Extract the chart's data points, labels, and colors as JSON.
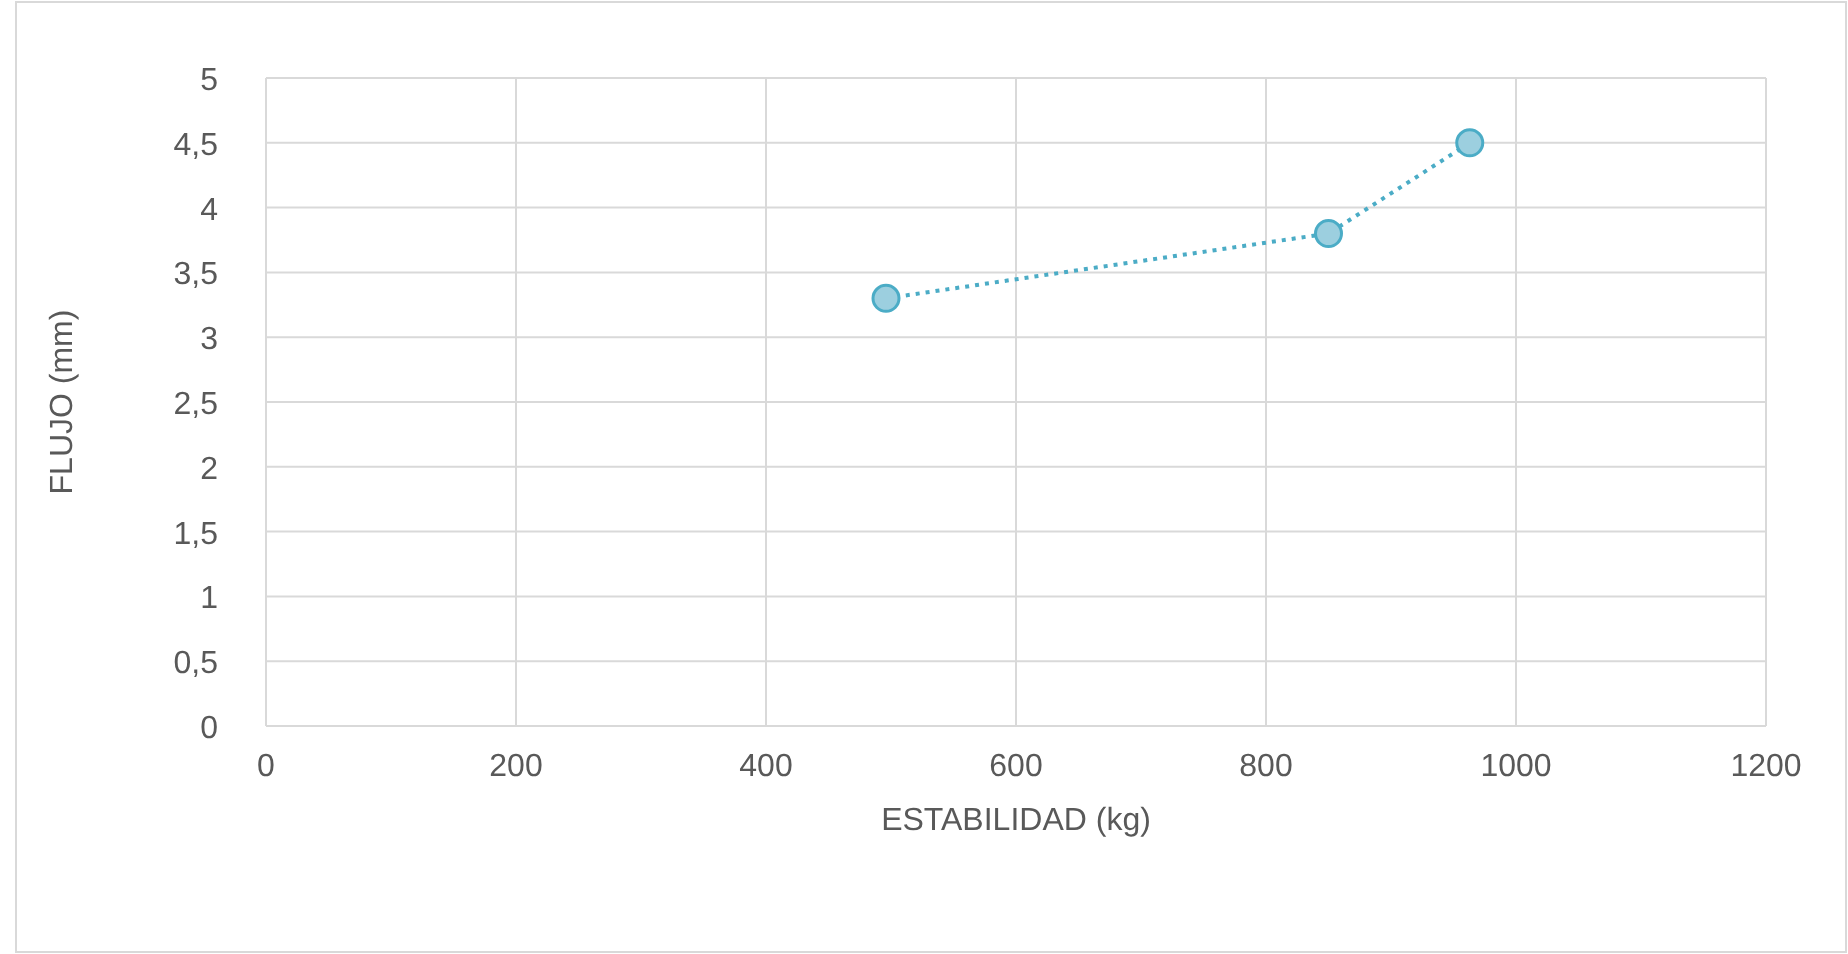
{
  "chart_data": {
    "type": "line",
    "xlabel": "ESTABILIDAD (kg)",
    "ylabel": "FLUJO (mm)",
    "series": [
      {
        "color": "#4bacc6",
        "x": [
          496,
          850,
          963
        ],
        "values": [
          3.3,
          3.8,
          4.5
        ]
      }
    ],
    "xlim": [
      0,
      1200
    ],
    "xticks": [
      0,
      200,
      400,
      600,
      800,
      1000,
      1200
    ],
    "ylim": [
      0,
      5
    ],
    "yticks": [
      0,
      {
        "value": 0.5,
        "label": "0,5"
      },
      1,
      {
        "value": 1.5,
        "label": "1,5"
      },
      2,
      {
        "value": 2.5,
        "label": "2,5"
      },
      3,
      {
        "value": 3.5,
        "label": "3,5"
      },
      4,
      {
        "value": 4.5,
        "label": "4,5"
      },
      5
    ],
    "grid": true,
    "marker": "circle",
    "line_style": "dotted"
  }
}
